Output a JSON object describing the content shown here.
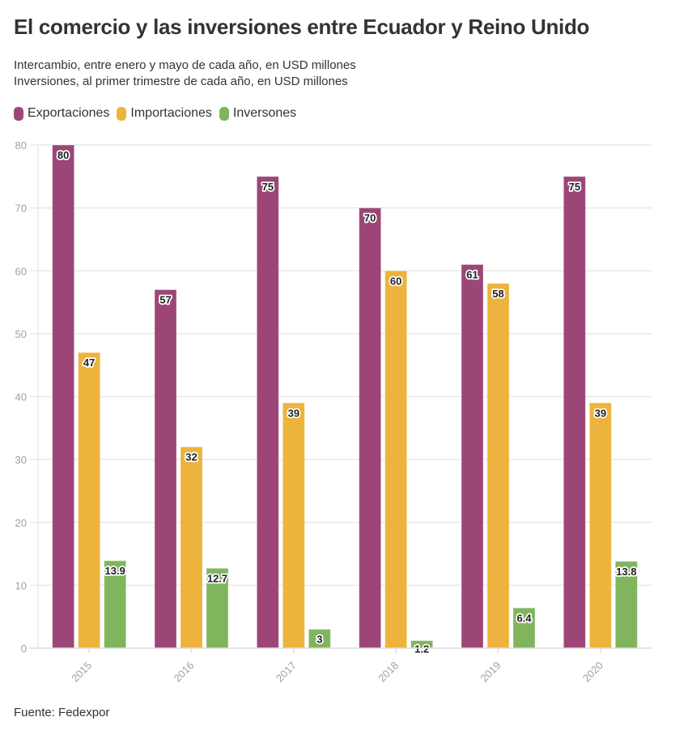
{
  "header": {
    "title": "El comercio y las inversiones entre Ecuador y Reino Unido",
    "subtitle_lines": [
      "Intercambio, entre enero y mayo de cada año, en USD millones",
      "Inversiones, al primer trimestre de cada año, en USD millones"
    ]
  },
  "legend": [
    {
      "label": "Exportaciones",
      "color": "#9c4677"
    },
    {
      "label": "Importaciones",
      "color": "#edb33c"
    },
    {
      "label": "Inversones",
      "color": "#80b55e"
    }
  ],
  "footer": {
    "source": "Fuente: Fedexpor"
  },
  "chart_data": {
    "type": "bar",
    "title": "El comercio y las inversiones entre Ecuador y Reino Unido",
    "xlabel": "",
    "ylabel": "",
    "categories": [
      "2015",
      "2016",
      "2017",
      "2018",
      "2019",
      "2020"
    ],
    "series": [
      {
        "name": "Exportaciones",
        "color": "#9c4677",
        "values": [
          80,
          57,
          75,
          70,
          61,
          75
        ],
        "labels": [
          "80",
          "57",
          "75",
          "70",
          "61",
          "75"
        ]
      },
      {
        "name": "Importaciones",
        "color": "#edb33c",
        "values": [
          47,
          32,
          39,
          60,
          58,
          39
        ],
        "labels": [
          "47",
          "32",
          "39",
          "60",
          "58",
          "39"
        ]
      },
      {
        "name": "Inversones",
        "color": "#80b55e",
        "values": [
          13.9,
          12.7,
          3,
          1.2,
          6.4,
          13.8
        ],
        "labels": [
          "13.9",
          "12.7",
          "3",
          "1.2",
          "6.4",
          "13.8"
        ]
      }
    ],
    "ylim": [
      0,
      80
    ],
    "yticks": [
      0,
      10,
      20,
      30,
      40,
      50,
      60,
      70,
      80
    ],
    "grid": true,
    "legend_position": "top-left",
    "x_tick_rotation": "diagonal"
  }
}
